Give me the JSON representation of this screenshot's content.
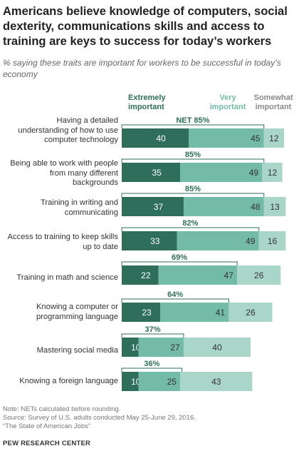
{
  "title": "Americans believe knowledge of computers, social dexterity, communications skills and access to training are keys to success for today’s workers",
  "subtitle": "% saying these traits are important for workers to be successful in today’s economy",
  "legend": [
    {
      "label": "Extremely important",
      "color": "#2e6e5a"
    },
    {
      "label": "Very important",
      "color": "#73baa7"
    },
    {
      "label": "Somewhat important",
      "color": "#a9d6c9"
    }
  ],
  "chart_data": {
    "type": "bar",
    "orientation": "horizontal",
    "stacked": true,
    "categories": [
      "Having a detailed understanding of how to use computer technology",
      "Being able to work with people from many different backgrounds",
      "Training in writing and communicating",
      "Access to training to keep skills up to date",
      "Training in math and science",
      "Knowing a computer or programming language",
      "Mastering social media",
      "Knowing a foreign language"
    ],
    "series": [
      {
        "name": "Extremely important",
        "values": [
          40,
          35,
          37,
          33,
          22,
          23,
          10,
          10
        ],
        "color": "#2e6e5a"
      },
      {
        "name": "Very important",
        "values": [
          45,
          49,
          48,
          49,
          47,
          41,
          27,
          25
        ],
        "color": "#73baa7"
      },
      {
        "name": "Somewhat important",
        "values": [
          12,
          12,
          13,
          16,
          26,
          26,
          40,
          43
        ],
        "color": "#a9d6c9"
      }
    ],
    "net_labels": [
      "NET 85%",
      "85%",
      "85%",
      "82%",
      "69%",
      "64%",
      "37%",
      "36%"
    ],
    "net_values": [
      85,
      85,
      85,
      82,
      69,
      64,
      37,
      36
    ],
    "xlim": [
      0,
      100
    ]
  },
  "notes": {
    "note": "Note: NETs calculated before rounding.",
    "source": "Source: Survey of U.S. adults conducted May 25-June 29, 2016.",
    "report": "“The State of American Jobs”"
  },
  "organization": "PEW RESEARCH CENTER"
}
